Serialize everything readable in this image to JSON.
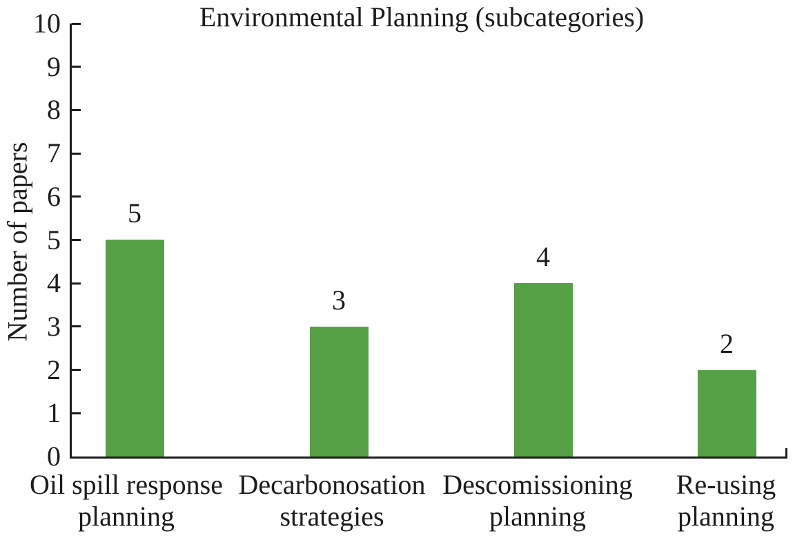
{
  "chart_data": {
    "type": "bar",
    "title": "Environmental Planning (subcategories)",
    "ylabel": "Number of papers",
    "xlabel": "",
    "categories": [
      "Oil spill response planning",
      "Decarbonosation strategies",
      "Descomissioning planning",
      "Re-using planning"
    ],
    "category_lines": [
      [
        "Oil spill response",
        "planning"
      ],
      [
        "Decarbonosation",
        "strategies"
      ],
      [
        "Descomissioning",
        "planning"
      ],
      [
        "Re-using",
        "planning"
      ]
    ],
    "values": [
      5,
      3,
      4,
      2
    ],
    "value_labels": [
      "5",
      "3",
      "4",
      "2"
    ],
    "ylim": [
      0,
      10
    ],
    "yticks": [
      0,
      1,
      2,
      3,
      4,
      5,
      6,
      7,
      8,
      9,
      10
    ],
    "grid": false,
    "legend_position": "none",
    "bar_color": "#56a046",
    "axis_color": "#1c1c1c"
  }
}
